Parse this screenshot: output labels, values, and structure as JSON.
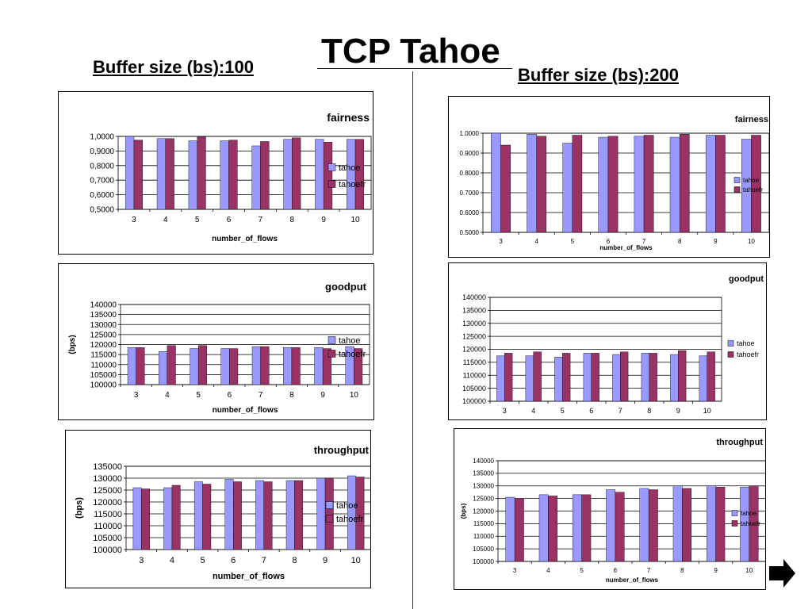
{
  "slide": {
    "title": "TCP Tahoe",
    "left_header": "Buffer  size (bs):100",
    "right_header": "Buffer  size (bs):200"
  },
  "colors": {
    "tahoe": "#9999ff",
    "tahoefr": "#993366"
  },
  "chart_data": [
    {
      "id": "bs100-fairness",
      "type": "bar",
      "title": "fairness",
      "xlabel": "number_of_flows",
      "ylabel": "",
      "categories": [
        "3",
        "4",
        "5",
        "6",
        "7",
        "8",
        "9",
        "10"
      ],
      "ylim": [
        0.5,
        1.0
      ],
      "yticks": [
        "0,5000",
        "0,6000",
        "0,7000",
        "0,8000",
        "0,9000",
        "1,0000"
      ],
      "legend": "right",
      "series": [
        {
          "name": "tahoe",
          "values": [
            1.0,
            0.985,
            0.97,
            0.97,
            0.935,
            0.98,
            0.98,
            0.98
          ]
        },
        {
          "name": "tahoefr",
          "values": [
            0.975,
            0.985,
            0.995,
            0.975,
            0.965,
            0.99,
            0.96,
            0.98
          ]
        }
      ]
    },
    {
      "id": "bs200-fairness",
      "type": "bar",
      "title": "fairness",
      "xlabel": "number_of_flows",
      "ylabel": "",
      "categories": [
        "3",
        "4",
        "5",
        "6",
        "7",
        "8",
        "9",
        "10"
      ],
      "ylim": [
        0.5,
        1.0
      ],
      "yticks": [
        "0.5000",
        "0.6000",
        "0.7000",
        "0.8000",
        "0.9000",
        "1.0000"
      ],
      "legend": "right",
      "series": [
        {
          "name": "tahoe",
          "values": [
            1.0,
            0.995,
            0.95,
            0.98,
            0.985,
            0.98,
            0.99,
            0.97
          ]
        },
        {
          "name": "tahoefr",
          "values": [
            0.94,
            0.985,
            0.99,
            0.985,
            0.99,
            0.995,
            0.99,
            0.99
          ]
        }
      ]
    },
    {
      "id": "bs100-goodput",
      "type": "bar",
      "title": "goodput",
      "xlabel": "number_of_flows",
      "ylabel": "(bps)",
      "categories": [
        "3",
        "4",
        "5",
        "6",
        "7",
        "8",
        "9",
        "10"
      ],
      "ylim": [
        100000,
        140000
      ],
      "yticks": [
        "100000",
        "105000",
        "110000",
        "115000",
        "120000",
        "125000",
        "130000",
        "135000",
        "140000"
      ],
      "legend": "right",
      "series": [
        {
          "name": "tahoe",
          "values": [
            118500,
            116500,
            118000,
            118000,
            119000,
            118500,
            118500,
            119000
          ]
        },
        {
          "name": "tahoefr",
          "values": [
            118500,
            119500,
            119500,
            118000,
            119000,
            118500,
            118000,
            118000
          ]
        }
      ]
    },
    {
      "id": "bs200-goodput",
      "type": "bar",
      "title": "goodput",
      "xlabel": "",
      "ylabel": "",
      "categories": [
        "3",
        "4",
        "5",
        "6",
        "7",
        "8",
        "9",
        "10"
      ],
      "ylim": [
        100000,
        140000
      ],
      "yticks": [
        "100000",
        "105000",
        "110000",
        "115000",
        "120000",
        "125000",
        "130000",
        "135000",
        "140000"
      ],
      "legend": "right",
      "series": [
        {
          "name": "tahoe",
          "values": [
            117500,
            117500,
            117000,
            118500,
            118000,
            118500,
            118000,
            117500
          ]
        },
        {
          "name": "tahoefr",
          "values": [
            118500,
            119000,
            118500,
            118500,
            119000,
            118500,
            119500,
            119000
          ]
        }
      ]
    },
    {
      "id": "bs100-throughput",
      "type": "bar",
      "title": "throughput",
      "xlabel": "number_of_flows",
      "ylabel": "(bps)",
      "categories": [
        "3",
        "4",
        "5",
        "6",
        "7",
        "8",
        "9",
        "10"
      ],
      "ylim": [
        100000,
        135000
      ],
      "yticks": [
        "100000",
        "105000",
        "110000",
        "115000",
        "120000",
        "125000",
        "130000",
        "135000"
      ],
      "legend": "right",
      "series": [
        {
          "name": "tahoe",
          "values": [
            126000,
            126000,
            128500,
            129500,
            129000,
            129000,
            130000,
            131000
          ]
        },
        {
          "name": "tahoefr",
          "values": [
            125500,
            127000,
            127500,
            128500,
            128500,
            129000,
            130000,
            130500
          ]
        }
      ]
    },
    {
      "id": "bs200-throughput",
      "type": "bar",
      "title": "throughput",
      "xlabel": "number_of_flows",
      "ylabel": "(bps)",
      "categories": [
        "3",
        "4",
        "5",
        "6",
        "7",
        "8",
        "9",
        "10"
      ],
      "ylim": [
        100000,
        140000
      ],
      "yticks": [
        "100000",
        "105000",
        "110000",
        "115000",
        "120000",
        "125000",
        "130000",
        "135000",
        "140000"
      ],
      "legend": "right",
      "series": [
        {
          "name": "tahoe",
          "values": [
            125500,
            126500,
            126500,
            128500,
            129000,
            130000,
            130000,
            129500
          ]
        },
        {
          "name": "tahoefr",
          "values": [
            125000,
            126000,
            126500,
            127500,
            128500,
            129000,
            129500,
            130000
          ]
        }
      ]
    }
  ]
}
